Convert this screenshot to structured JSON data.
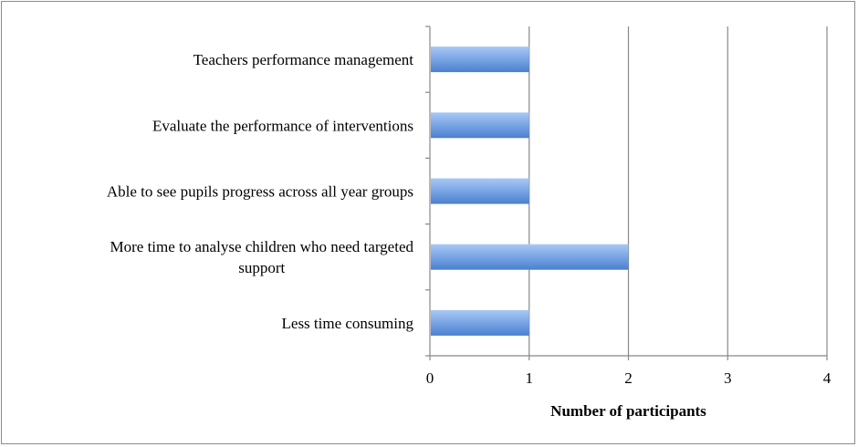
{
  "chart_data": {
    "type": "bar",
    "orientation": "horizontal",
    "categories": [
      "Teachers performance management",
      "Evaluate the performance of interventions",
      "Able to see pupils progress across all year groups",
      "More time to analyse children who need targeted support",
      "Less time consuming"
    ],
    "category_lines": [
      [
        "Teachers performance management"
      ],
      [
        "Evaluate the performance of interventions"
      ],
      [
        "Able to see pupils progress across all year groups"
      ],
      [
        "More time to analyse children who need targeted",
        "support"
      ],
      [
        "Less time consuming"
      ]
    ],
    "values": [
      1,
      1,
      1,
      2,
      1
    ],
    "xlabel": "Number of participants",
    "ylabel": "",
    "title": "",
    "xlim": [
      0,
      4
    ],
    "x_ticks": [
      0,
      1,
      2,
      3,
      4
    ],
    "grid": "vertical",
    "legend": "none",
    "colors": {
      "bar_top": "#a9c8f4",
      "bar_mid": "#7ea8e6",
      "bar_bottom": "#4a7fcf",
      "grid": "#888888",
      "axis": "#888888"
    }
  }
}
